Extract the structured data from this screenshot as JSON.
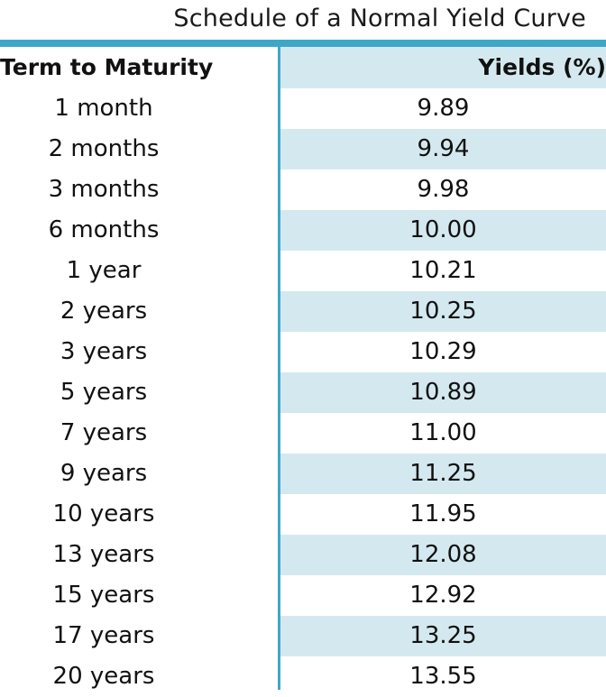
{
  "title": "Schedule of a Normal Yield Curve",
  "headers": {
    "term": "Term to Maturity",
    "yield": "Yields (%)"
  },
  "rows": [
    {
      "term": "1 month",
      "yield": "9.89"
    },
    {
      "term": "2 months",
      "yield": "9.94"
    },
    {
      "term": "3 months",
      "yield": "9.98"
    },
    {
      "term": "6 months",
      "yield": "10.00"
    },
    {
      "term": "1 year",
      "yield": "10.21"
    },
    {
      "term": "2 years",
      "yield": "10.25"
    },
    {
      "term": "3 years",
      "yield": "10.29"
    },
    {
      "term": "5 years",
      "yield": "10.89"
    },
    {
      "term": "7 years",
      "yield": "11.00"
    },
    {
      "term": "9 years",
      "yield": "11.25"
    },
    {
      "term": "10 years",
      "yield": "11.95"
    },
    {
      "term": "13 years",
      "yield": "12.08"
    },
    {
      "term": "15 years",
      "yield": "12.92"
    },
    {
      "term": "17 years",
      "yield": "13.25"
    },
    {
      "term": "20 years",
      "yield": "13.55"
    }
  ],
  "colors": {
    "accent": "#3ea7c8",
    "shade": "#d3e9ef"
  }
}
